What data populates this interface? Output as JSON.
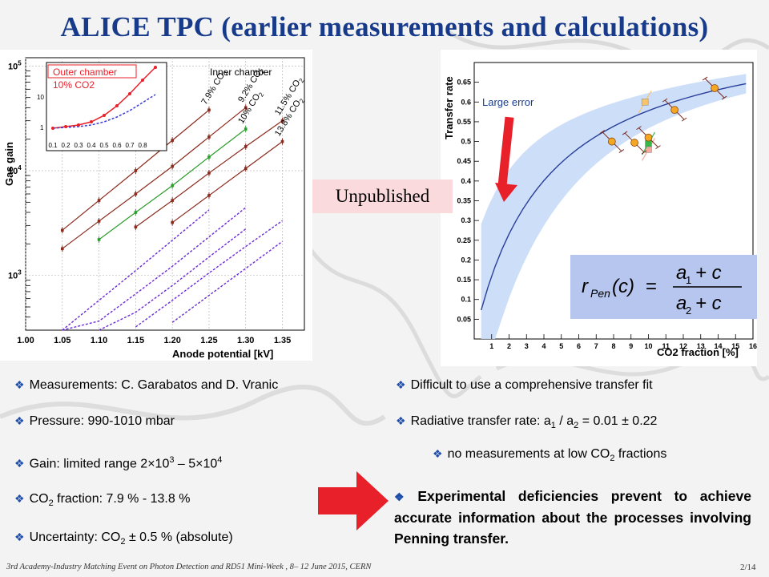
{
  "title": "ALICE TPC (earlier measurements and calculations)",
  "unpublished_label": "Unpublished",
  "large_error_label": "Large error",
  "formula": {
    "lhs": "r",
    "lhs_sub": "Pen",
    "arg": "(c)",
    "eq": "=",
    "num_a": "a",
    "num_sub": "1",
    "num_rest": "+ c",
    "den_a": "a",
    "den_sub": "2",
    "den_rest": "+ c"
  },
  "left_bullets": [
    {
      "text": "Measurements: C. Garabatos and D. Vranic"
    },
    {
      "text": "Pressure:  990-1010 mbar"
    },
    {
      "pre": "Gain: limited range 2×10",
      "sup1": "3",
      "mid": " – 5×10",
      "sup2": "4"
    },
    {
      "pre": "CO",
      "sub": "2",
      "post": " fraction: 7.9 %  - 13.8 %"
    },
    {
      "pre": "Uncertainty: CO",
      "sub": "2",
      "post": " ± 0.5 % (absolute)"
    }
  ],
  "right_bullets": [
    {
      "text": "Difficult to use a comprehensive transfer fit"
    },
    {
      "pre": "Radiative transfer rate: a",
      "sub1": "1",
      "mid": " / a",
      "sub2": "2",
      "post": " = 0.01 ± 0.22"
    },
    {
      "pre": "no measurements at low CO",
      "sub": "2",
      "post": " fractions"
    }
  ],
  "bold_bullet": "Experimental deficiencies prevent to achieve accurate information about the processes involving Penning transfer.",
  "footer": "3rd Academy-Industry Matching Event on Photon Detection and RD51 Mini-Week , 8– 12 June 2015, CERN",
  "page_number": "2/14",
  "colors": {
    "title": "#173a8a",
    "accent_red": "#e8202a",
    "band": "#c8daf7",
    "fit_line": "#2a3f9a",
    "points": "#f5a623"
  },
  "chart_data": [
    {
      "type": "scatter",
      "xlabel": "Anode potential [kV]",
      "ylabel": "Gas gain",
      "yscale": "log",
      "xlim": [
        1.0,
        1.38
      ],
      "ylim": [
        300,
        120000
      ],
      "xticks": [
        "1.00",
        "1.05",
        "1.10",
        "1.15",
        "1.20",
        "1.25",
        "1.30",
        "1.35"
      ],
      "yticks": [
        "10^3",
        "10^4",
        "10^5"
      ],
      "panel_label": "Inner chamber",
      "series": [
        {
          "name": "7.9% CO2",
          "x": [
            1.05,
            1.1,
            1.15,
            1.2,
            1.25
          ],
          "y": [
            2700,
            5200,
            10000,
            19500,
            38000
          ]
        },
        {
          "name": "9.2% CO2",
          "x": [
            1.05,
            1.1,
            1.15,
            1.2,
            1.25,
            1.3
          ],
          "y": [
            1800,
            3300,
            6000,
            11000,
            21000,
            40000
          ]
        },
        {
          "name": "10% CO2",
          "x": [
            1.1,
            1.15,
            1.2,
            1.25,
            1.3
          ],
          "y": [
            2200,
            4000,
            7200,
            13500,
            25000
          ]
        },
        {
          "name": "11.5% CO2",
          "x": [
            1.15,
            1.2,
            1.25,
            1.3,
            1.35
          ],
          "y": [
            2900,
            5200,
            9500,
            17000,
            30000
          ]
        },
        {
          "name": "13.8% CO2",
          "x": [
            1.2,
            1.25,
            1.3,
            1.35
          ],
          "y": [
            3200,
            5800,
            10500,
            19000
          ]
        }
      ],
      "inset": {
        "labels": [
          "Outer chamber",
          "10% CO2"
        ],
        "xticks": [
          "0.1",
          "0.2",
          "0.3",
          "0.4",
          "0.5",
          "0.6",
          "0.7",
          "0.8"
        ],
        "yticks": [
          "1",
          "10"
        ]
      }
    },
    {
      "type": "scatter",
      "xlabel": "CO2 fraction [%]",
      "ylabel": "Transfer rate",
      "xlim": [
        0,
        16
      ],
      "ylim": [
        0,
        0.7
      ],
      "xticks": [
        "1",
        "2",
        "3",
        "4",
        "5",
        "6",
        "7",
        "8",
        "9",
        "10",
        "11",
        "12",
        "13",
        "14",
        "15",
        "16"
      ],
      "yticks": [
        "0.05",
        "0.1",
        "0.15",
        "0.2",
        "0.25",
        "0.3",
        "0.35",
        "0.4",
        "0.45",
        "0.5",
        "0.55",
        "0.6",
        "0.65"
      ],
      "points": [
        {
          "x": 7.9,
          "y": 0.5
        },
        {
          "x": 9.2,
          "y": 0.497
        },
        {
          "x": 10.0,
          "y": 0.51
        },
        {
          "x": 11.5,
          "y": 0.58
        },
        {
          "x": 13.8,
          "y": 0.635
        }
      ],
      "extra_points": [
        {
          "x": 10.0,
          "y": 0.48,
          "color": "#f4a9a0"
        },
        {
          "x": 10.0,
          "y": 0.495,
          "color": "#39b54a"
        },
        {
          "x": 9.8,
          "y": 0.6,
          "color": "#f7c46c"
        }
      ]
    }
  ]
}
